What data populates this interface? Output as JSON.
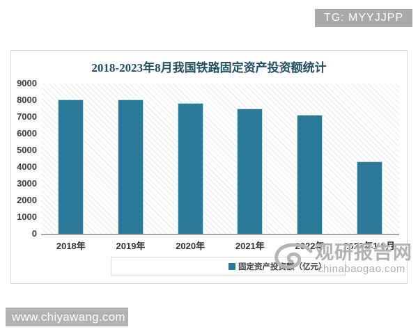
{
  "badge": {
    "label": "TG: MYYJJPP"
  },
  "chart_data": {
    "type": "bar",
    "title": "2018-2023年8月我国铁路固定资产投资额统计",
    "categories": [
      "2018年",
      "2019年",
      "2020年",
      "2021年",
      "2022年",
      "2023年1-8月"
    ],
    "values": [
      8028,
      8029,
      7819,
      7489,
      7109,
      4320
    ],
    "series_name": "固定资产投资额（亿元）",
    "xlabel": "",
    "ylabel": "",
    "ylim": [
      0,
      9000
    ],
    "ytick_step": 1000,
    "grid": false,
    "legend_position": "bottom",
    "bar_color": "#2b7897",
    "bar_edge_color": "#bcdcea",
    "plot_background": "diagonal-hatch",
    "title_color": "#1e4f63"
  },
  "watermark": {
    "name": "观研报告网",
    "domain": "chinabaogao.com",
    "logo": "swirl-logo"
  },
  "footer": {
    "url": "www.chiyawang.com"
  }
}
